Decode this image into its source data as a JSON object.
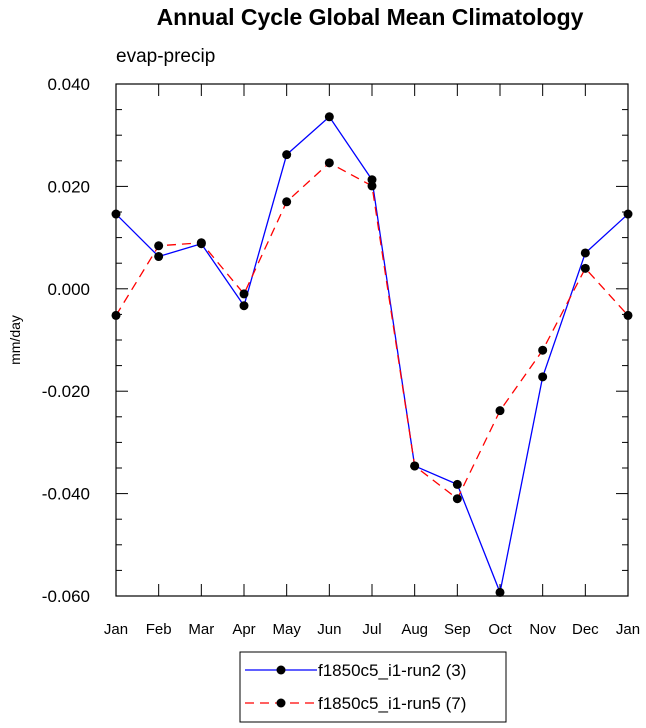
{
  "chart_data": {
    "type": "line",
    "title": "Annual Cycle Global Mean Climatology",
    "subtitle": "evap-precip",
    "xlabel": "",
    "ylabel": "mm/day",
    "categories": [
      "Jan",
      "Feb",
      "Mar",
      "Apr",
      "May",
      "Jun",
      "Jul",
      "Aug",
      "Sep",
      "Oct",
      "Nov",
      "Dec",
      "Jan"
    ],
    "ylim": [
      -0.06,
      0.04
    ],
    "yticks": [
      "0.040",
      "0.020",
      "0.000",
      "-0.020",
      "-0.040",
      "-0.060"
    ],
    "ytick_values": [
      0.04,
      0.02,
      0.0,
      -0.02,
      -0.04,
      -0.06
    ],
    "grid": false,
    "legend_position": "bottom-center",
    "series": [
      {
        "name": "f1850c5_i1-run2 (3)",
        "color": "#0000ff",
        "line_style": "solid",
        "marker": "filled-circle",
        "values": [
          0.0146,
          0.0063,
          0.0088,
          -0.0033,
          0.0262,
          0.0336,
          0.0213,
          -0.0346,
          -0.0382,
          -0.0593,
          -0.0172,
          0.007,
          0.0146
        ]
      },
      {
        "name": "f1850c5_i1-run5 (7)",
        "color": "#ff0000",
        "line_style": "dashed",
        "marker": "filled-circle",
        "values": [
          -0.0052,
          0.0084,
          0.009,
          -0.001,
          0.017,
          0.0246,
          0.0201,
          -0.0346,
          -0.041,
          -0.0238,
          -0.012,
          0.004,
          -0.0052
        ]
      }
    ]
  }
}
